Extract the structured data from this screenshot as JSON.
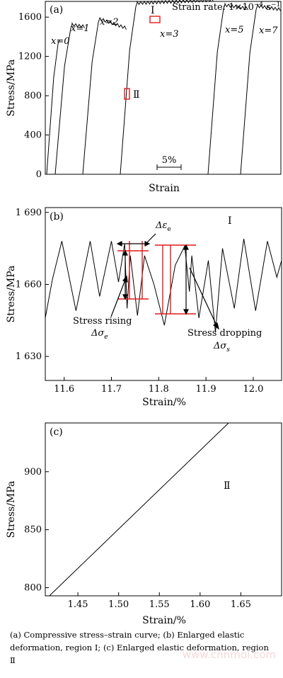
{
  "chart_data": [
    {
      "id": "a",
      "type": "line",
      "panel_label": "(a)",
      "xlabel": "Strain",
      "ylabel": "Stress/MPa",
      "ylim": [
        0,
        1760
      ],
      "y_ticks": [
        0,
        400,
        800,
        1200,
        1600
      ],
      "scale_bar": "5%",
      "rate_prefix": "Strain rate: 1×10",
      "rate_exp": "−4",
      "rate_unit": " s",
      "rate_unit_exp": "−1",
      "region_labels": [
        "Ⅰ",
        "Ⅱ"
      ],
      "series": [
        {
          "name": "x=0",
          "peak": 1370
        },
        {
          "name": "x=1",
          "peak": 1530
        },
        {
          "name": "x=2",
          "peak": 1590
        },
        {
          "name": "x=3",
          "peak": 1750
        },
        {
          "name": "x=5",
          "peak": 1730
        },
        {
          "name": "x=7",
          "peak": 1720
        }
      ]
    },
    {
      "id": "b",
      "type": "line",
      "panel_label": "(b)",
      "xlabel": "Strain/%",
      "ylabel": "Stress/MPa",
      "xlim": [
        11.56,
        12.06
      ],
      "ylim": [
        1620,
        1692
      ],
      "x_ticks": [
        "11.6",
        "11.7",
        "11.8",
        "11.9",
        "12.0"
      ],
      "y_ticks": [
        "1 630",
        "1 660",
        "1 690"
      ],
      "region_label": "Ⅰ",
      "x": [
        11.56,
        11.575,
        11.595,
        11.625,
        11.655,
        11.675,
        11.7,
        11.715,
        11.728,
        11.733,
        11.74,
        11.755,
        11.77,
        11.79,
        11.812,
        11.835,
        11.855,
        11.865,
        11.87,
        11.885,
        11.905,
        11.92,
        11.935,
        11.96,
        11.98,
        12.005,
        12.03,
        12.05,
        12.06
      ],
      "y": [
        1646,
        1662,
        1678,
        1649,
        1678,
        1655,
        1678,
        1661,
        1677,
        1650,
        1672,
        1647,
        1672,
        1660,
        1643,
        1668,
        1676,
        1657,
        1672,
        1646,
        1670,
        1640,
        1675,
        1650,
        1679,
        1649,
        1678,
        1663,
        1670
      ],
      "annotations": {
        "delta_e": "Δε",
        "delta_e_sub": "e",
        "rising_line1": "Stress rising",
        "rising_line2": "Δσ",
        "rising_sub": "e",
        "dropping_line1": "Stress dropping",
        "dropping_line2": "Δσ",
        "dropping_sub": "s"
      }
    },
    {
      "id": "c",
      "type": "line",
      "panel_label": "(c)",
      "xlabel": "Strain/%",
      "ylabel": "Stress/MPa",
      "xlim": [
        1.41,
        1.7
      ],
      "ylim": [
        793,
        942
      ],
      "x_ticks": [
        "1.45",
        "1.50",
        "1.55",
        "1.60",
        "1.65"
      ],
      "y_ticks": [
        "800",
        "850",
        "900"
      ],
      "region_label": "Ⅱ",
      "x": [
        1.415,
        1.635
      ],
      "y": [
        793,
        942
      ]
    }
  ],
  "caption": {
    "a": "(a)  Compressive  stress–strain  curve;  (b)  Enlarged  elastic",
    "b": "deformation, region Ⅰ; (c) Enlarged elastic deformation, region",
    "c": "Ⅱ"
  },
  "watermark": "www.cnnmol.com"
}
